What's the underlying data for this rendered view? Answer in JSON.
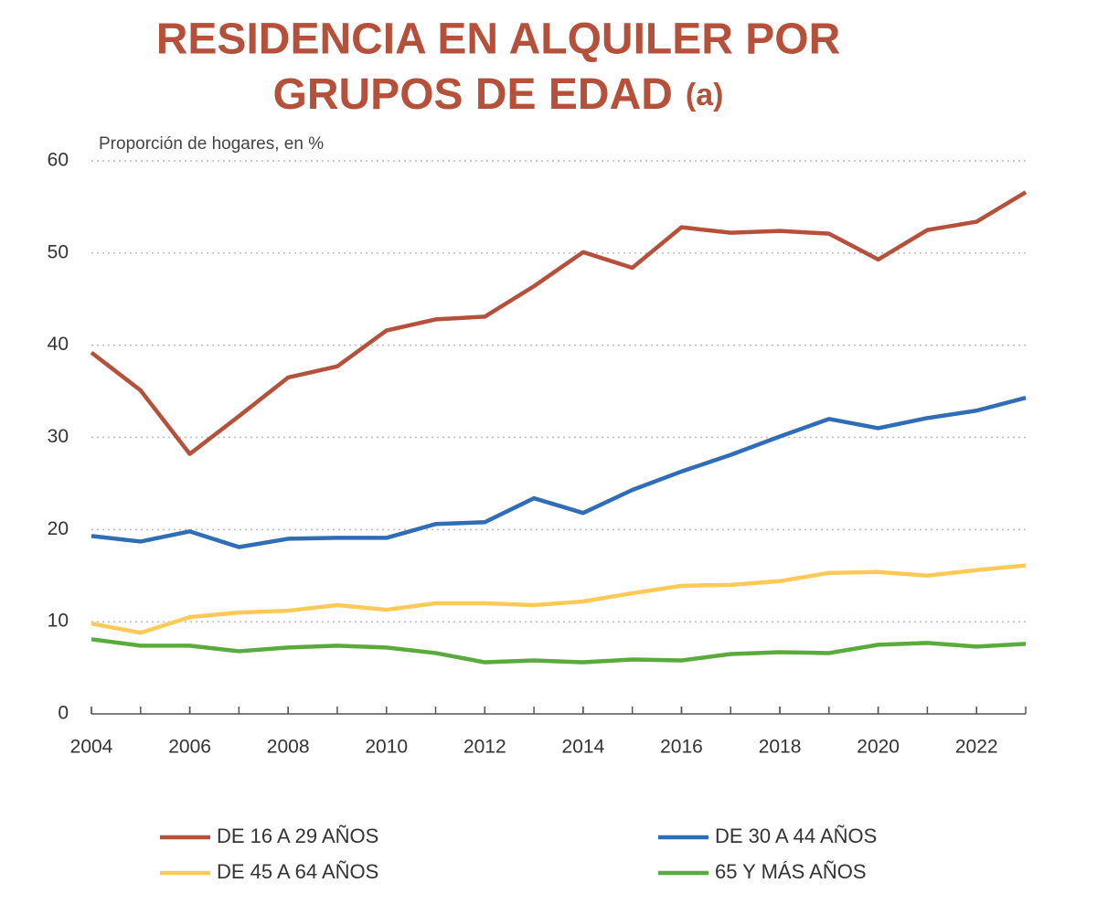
{
  "chart_data": {
    "type": "line",
    "title": [
      "RESIDENCIA EN ALQUILER POR",
      "GRUPOS DE EDAD"
    ],
    "title_suffix": "(a)",
    "y_label": "Proporción de hogares, en %",
    "x": [
      2004,
      2005,
      2006,
      2007,
      2008,
      2009,
      2010,
      2011,
      2012,
      2013,
      2014,
      2015,
      2016,
      2017,
      2018,
      2019,
      2020,
      2021,
      2022,
      2023
    ],
    "series": [
      {
        "name": "DE 16 A 29 AÑOS",
        "color": "#b5503a",
        "values": [
          39.2,
          35.1,
          28.2,
          32.3,
          36.5,
          37.7,
          41.6,
          42.8,
          43.1,
          46.4,
          50.1,
          48.4,
          52.8,
          52.2,
          52.4,
          52.1,
          49.3,
          52.5,
          53.4,
          56.6
        ]
      },
      {
        "name": "DE 30 A 44 AÑOS",
        "color": "#2f6db7",
        "values": [
          19.3,
          18.7,
          19.8,
          18.1,
          19.0,
          19.1,
          19.1,
          20.6,
          20.8,
          23.4,
          21.8,
          24.3,
          26.3,
          28.1,
          30.1,
          32.0,
          31.0,
          32.1,
          32.9,
          34.3
        ]
      },
      {
        "name": "DE 45 A 64 AÑOS",
        "color": "#fdca5a",
        "values": [
          9.8,
          8.8,
          10.5,
          11.0,
          11.2,
          11.8,
          11.3,
          12.0,
          12.0,
          11.8,
          12.2,
          13.1,
          13.9,
          14.0,
          14.4,
          15.3,
          15.4,
          15.0,
          15.6,
          16.1
        ]
      },
      {
        "name": "65 Y MÁS AÑOS",
        "color": "#5aab3c",
        "values": [
          8.1,
          7.4,
          7.4,
          6.8,
          7.2,
          7.4,
          7.2,
          6.6,
          5.6,
          5.8,
          5.6,
          5.9,
          5.8,
          6.5,
          6.7,
          6.6,
          7.5,
          7.7,
          7.3,
          7.6
        ]
      }
    ],
    "xlim": [
      2004,
      2023
    ],
    "xticks": [
      2004,
      2006,
      2008,
      2010,
      2012,
      2014,
      2016,
      2018,
      2020,
      2022
    ],
    "ylim": [
      0,
      60
    ],
    "yticks": [
      0,
      10,
      20,
      30,
      40,
      50,
      60
    ],
    "grid": true,
    "legend": "bottom"
  }
}
